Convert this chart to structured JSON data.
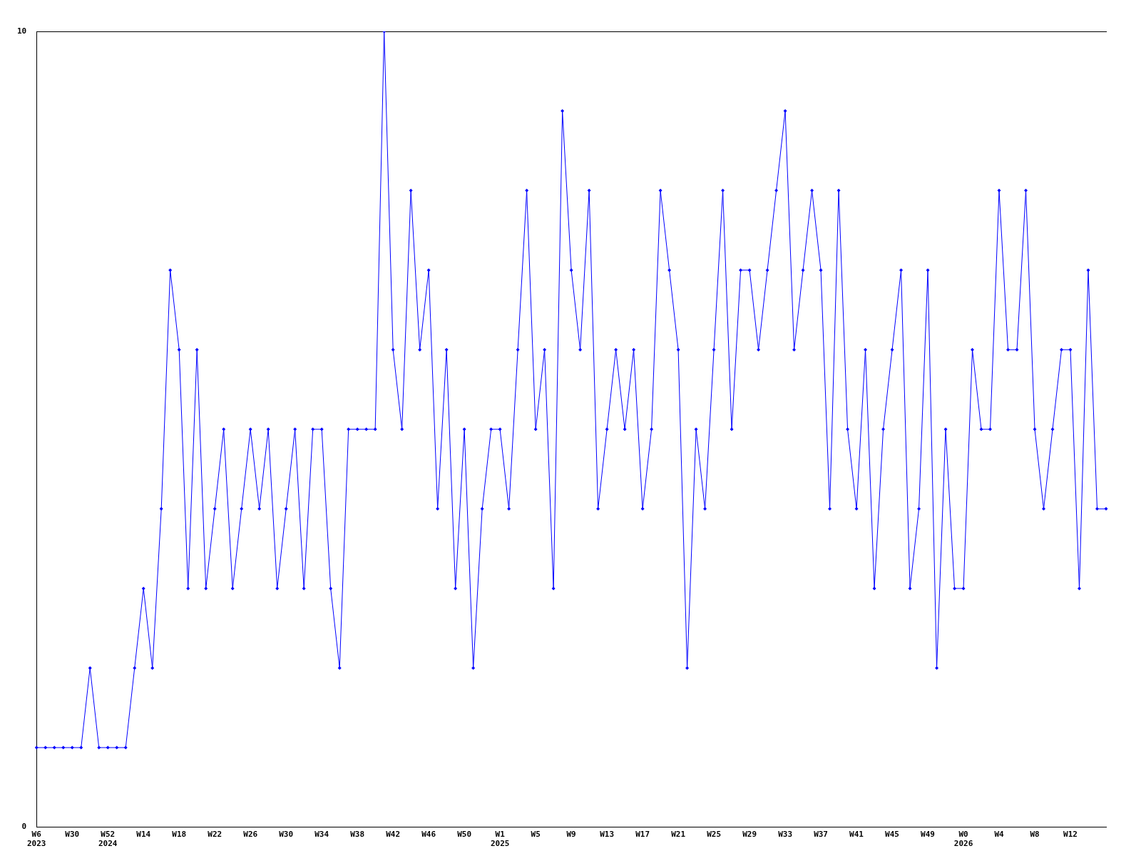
{
  "chart_data": {
    "type": "line",
    "categories": [
      "W6\n2023",
      null,
      null,
      null,
      "W30",
      null,
      null,
      null,
      "W52\n2024",
      null,
      null,
      null,
      "W14",
      null,
      null,
      null,
      "W18",
      null,
      null,
      null,
      "W22",
      null,
      null,
      null,
      "W26",
      null,
      null,
      null,
      "W30",
      null,
      null,
      null,
      "W34",
      null,
      null,
      null,
      "W38",
      null,
      null,
      null,
      "W42",
      null,
      null,
      null,
      "W46",
      null,
      null,
      null,
      "W50",
      null,
      null,
      null,
      "W1\n2025",
      null,
      null,
      null,
      "W5",
      null,
      null,
      null,
      "W9",
      null,
      null,
      null,
      "W13",
      null,
      null,
      null,
      "W17",
      null,
      null,
      null,
      "W21",
      null,
      null,
      null,
      "W25",
      null,
      null,
      null,
      "W29",
      null,
      null,
      null,
      "W33",
      null,
      null,
      null,
      "W37",
      null,
      null,
      null,
      "W41",
      null,
      null,
      null,
      "W45",
      null,
      null,
      null,
      "W49",
      null,
      null,
      null,
      "W0\n2026",
      null,
      null,
      null,
      "W4",
      null,
      null,
      null,
      "W8",
      null,
      null,
      null,
      "W12",
      null,
      null,
      null,
      null
    ],
    "series": [
      {
        "color": "#0000ff",
        "values": [
          1,
          1,
          1,
          1,
          1,
          1,
          2,
          1,
          1,
          1,
          1,
          2,
          3,
          2,
          4,
          7,
          6,
          3,
          6,
          3,
          4,
          5,
          3,
          4,
          5,
          4,
          5,
          3,
          4,
          5,
          3,
          5,
          5,
          3,
          2,
          5,
          5,
          5,
          5,
          10,
          6,
          5,
          8,
          6,
          7,
          4,
          6,
          3,
          5,
          2,
          4,
          5,
          5,
          4,
          6,
          8,
          5,
          6,
          3,
          9,
          7,
          6,
          8,
          4,
          5,
          6,
          5,
          6,
          4,
          5,
          8,
          7,
          6,
          2,
          5,
          4,
          6,
          8,
          5,
          7,
          7,
          6,
          7,
          8,
          9,
          6,
          7,
          8,
          7,
          4,
          8,
          5,
          4,
          6,
          3,
          5,
          6,
          7,
          3,
          4,
          7,
          2,
          5,
          3,
          3,
          6,
          5,
          5,
          8,
          6,
          6,
          8,
          5,
          4,
          5,
          6,
          6,
          3,
          7,
          4,
          4
        ]
      }
    ],
    "ylim": [
      0,
      10
    ],
    "yticks": [
      0,
      10
    ],
    "grid": false,
    "legend": false,
    "marker": "diamond",
    "line_style": "solid"
  }
}
